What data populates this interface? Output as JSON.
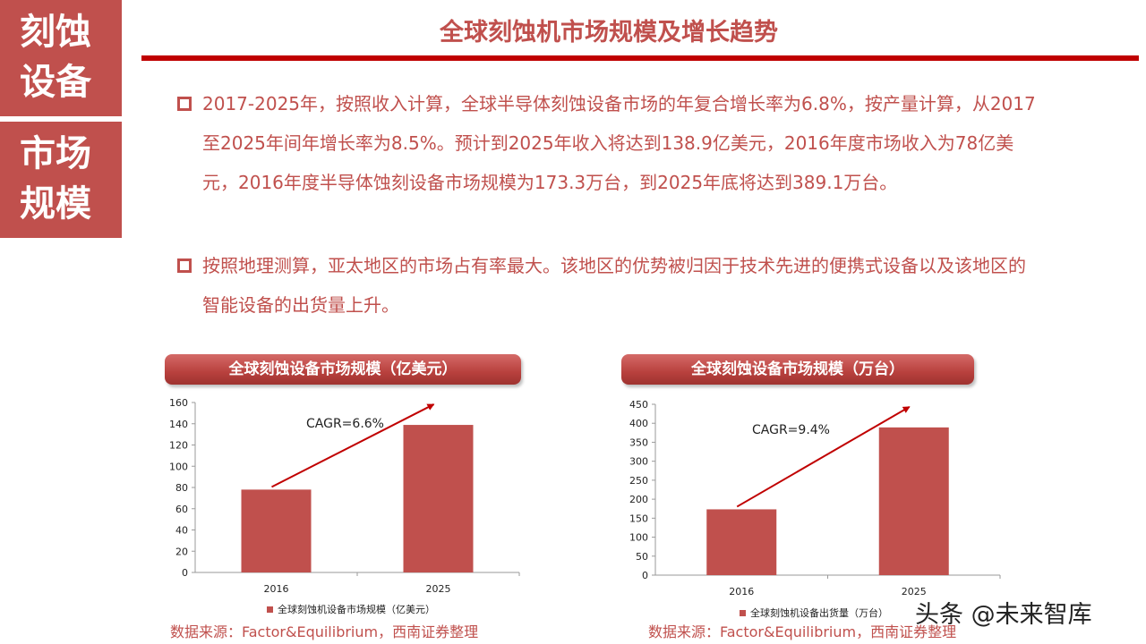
{
  "side_label_top": "刻蚀设备",
  "side_label_bottom": "市场规模",
  "title": "全球刻蚀机市场规模及增长趋势",
  "bullets": [
    "2017-2025年，按照收入计算，全球半导体刻蚀设备市场的年复合增长率为6.8%，按产量计算，从2017至2025年间年增长率为8.5%。预计到2025年收入将达到138.9亿美元，2016年度市场收入为78亿美元，2016年度半导体蚀刻设备市场规模为173.3万台，到2025年底将达到389.1万台。",
    "按照地理测算，亚太地区的市场占有率最大。该地区的优势被归因于技术先进的便携式设备以及该地区的智能设备的出货量上升。"
  ],
  "sources": [
    "数据来源：Factor&Equilibrium，西南证券整理",
    "数据来源：Factor&Equilibrium，西南证券整理"
  ],
  "watermark": "头条 @未来智库",
  "colors": {
    "accent": "#c0504d",
    "rule": "#c00000",
    "bar": "#c0504d",
    "arrow": "#c00000"
  },
  "chart_data": [
    {
      "type": "bar",
      "title": "全球刻蚀设备市场规模（亿美元）",
      "categories": [
        "2016",
        "2025"
      ],
      "series": [
        {
          "name": "全球刻蚀机设备市场规模（亿美元）",
          "values": [
            78,
            138.9
          ]
        }
      ],
      "ylim": [
        0,
        160
      ],
      "yticks": [
        0,
        20,
        40,
        60,
        80,
        100,
        120,
        140,
        160
      ],
      "annotation": "CAGR=6.6%",
      "legend_position": "bottom",
      "grid": false
    },
    {
      "type": "bar",
      "title": "全球刻蚀设备市场规模（万台）",
      "categories": [
        "2016",
        "2025"
      ],
      "series": [
        {
          "name": "全球刻蚀机设备出货量（万台）",
          "values": [
            173.3,
            389.1
          ]
        }
      ],
      "ylim": [
        0,
        450
      ],
      "yticks": [
        0,
        50,
        100,
        150,
        200,
        250,
        300,
        350,
        400,
        450
      ],
      "annotation": "CAGR=9.4%",
      "legend_position": "bottom",
      "grid": false
    }
  ]
}
